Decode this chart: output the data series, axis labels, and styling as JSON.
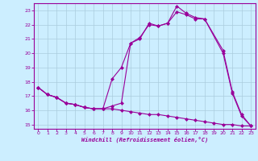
{
  "xlabel": "Windchill (Refroidissement éolien,°C)",
  "background_color": "#cceeff",
  "grid_color": "#aaccdd",
  "line_color": "#990099",
  "markersize": 2.5,
  "linewidth": 0.8,
  "xlim": [
    -0.5,
    23.5
  ],
  "ylim": [
    14.7,
    23.5
  ],
  "yticks": [
    15,
    16,
    17,
    18,
    19,
    20,
    21,
    22,
    23
  ],
  "xticks": [
    0,
    1,
    2,
    3,
    4,
    5,
    6,
    7,
    8,
    9,
    10,
    11,
    12,
    13,
    14,
    15,
    16,
    17,
    18,
    19,
    20,
    21,
    22,
    23
  ],
  "curve1_x": [
    0,
    1,
    2,
    3,
    4,
    5,
    6,
    7,
    8,
    9,
    10,
    11,
    12,
    13,
    14,
    15,
    16,
    17,
    18,
    20,
    21,
    22,
    23
  ],
  "curve1_y": [
    17.6,
    17.1,
    16.9,
    16.5,
    16.4,
    16.2,
    16.1,
    16.1,
    16.3,
    16.5,
    20.7,
    21.0,
    22.1,
    21.9,
    22.1,
    23.3,
    22.8,
    22.5,
    22.4,
    20.2,
    17.3,
    15.7,
    14.9
  ],
  "curve2_x": [
    0,
    1,
    2,
    3,
    4,
    5,
    6,
    7,
    8,
    9,
    10,
    11,
    12,
    13,
    14,
    15,
    16,
    17,
    18,
    20,
    21,
    22,
    23
  ],
  "curve2_y": [
    17.6,
    17.1,
    16.9,
    16.5,
    16.4,
    16.2,
    16.1,
    16.1,
    18.2,
    19.0,
    20.7,
    21.1,
    22.0,
    21.9,
    22.1,
    22.9,
    22.7,
    22.4,
    22.4,
    20.0,
    17.2,
    15.6,
    14.9
  ],
  "curve3_x": [
    0,
    1,
    2,
    3,
    4,
    5,
    6,
    7,
    8,
    9,
    10,
    11,
    12,
    13,
    14,
    15,
    16,
    17,
    18,
    19,
    20,
    21,
    22,
    23
  ],
  "curve3_y": [
    17.6,
    17.1,
    16.9,
    16.5,
    16.4,
    16.2,
    16.1,
    16.1,
    16.1,
    16.0,
    15.9,
    15.8,
    15.7,
    15.7,
    15.6,
    15.5,
    15.4,
    15.3,
    15.2,
    15.1,
    15.0,
    15.0,
    14.9,
    14.9
  ]
}
